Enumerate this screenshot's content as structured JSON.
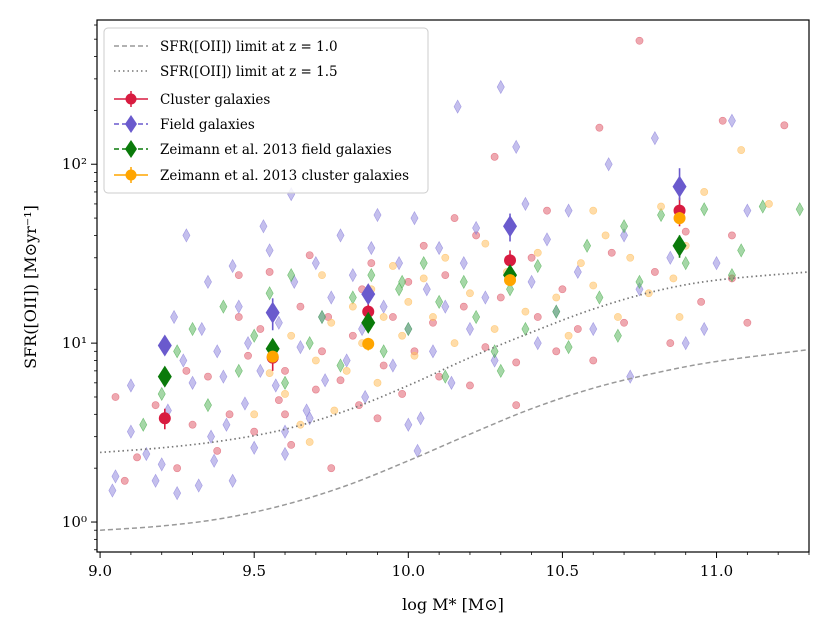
{
  "chart_data": {
    "type": "scatter",
    "title": "",
    "xlabel": "log M* [M⊙]",
    "ylabel": "SFR([OII]) [M⊙yr⁻¹]",
    "xlim": [
      8.99,
      11.3
    ],
    "ylim": [
      0.68,
      640
    ],
    "yscale": "log",
    "grid": false,
    "legend_position": "top-left",
    "x_ticks": [
      9.0,
      9.5,
      10.0,
      10.5,
      11.0
    ],
    "x_tick_labels": [
      "9.0",
      "9.5",
      "10.0",
      "10.5",
      "11.0"
    ],
    "y_ticks": [
      1,
      10,
      100
    ],
    "y_tick_labels": [
      "10⁰",
      "10¹",
      "10²"
    ],
    "legend": [
      {
        "label": "SFR([OII]) limit at z = 1.0",
        "color": "#999999",
        "style": "dashed-line"
      },
      {
        "label": "SFR([OII]) limit at z = 1.5",
        "color": "#777777",
        "style": "dotted-line"
      },
      {
        "label": "Cluster galaxies",
        "color": "#d81b40",
        "style": "circle-errorbar"
      },
      {
        "label": "Field galaxies",
        "color": "#6a5acd",
        "style": "diamond-dashed"
      },
      {
        "label": "Zeimann et al. 2013 field galaxies",
        "color": "#0a7a0a",
        "style": "diamond-dashed"
      },
      {
        "label": "Zeimann et al. 2013 cluster galaxies",
        "color": "#ffa500",
        "style": "circle-errorbar"
      }
    ],
    "limit_curves": [
      {
        "name": "SFR([OII]) limit at z=1.0",
        "x": [
          9.0,
          9.2,
          9.4,
          9.6,
          9.8,
          10.0,
          10.2,
          10.4,
          10.6,
          10.8,
          11.0,
          11.3
        ],
        "y": [
          0.9,
          0.95,
          1.05,
          1.25,
          1.6,
          2.2,
          3.1,
          4.3,
          5.6,
          6.8,
          7.9,
          9.2
        ]
      },
      {
        "name": "SFR([OII]) limit at z=1.5",
        "x": [
          9.0,
          9.2,
          9.4,
          9.6,
          9.8,
          10.0,
          10.2,
          10.4,
          10.6,
          10.8,
          11.0,
          11.3
        ],
        "y": [
          2.45,
          2.6,
          2.85,
          3.3,
          4.2,
          5.8,
          8.3,
          11.5,
          15.5,
          19.5,
          22.5,
          25
        ]
      }
    ],
    "binned_series": [
      {
        "name": "Cluster galaxies",
        "x": [
          9.21,
          9.56,
          9.87,
          10.33,
          10.88
        ],
        "y": [
          3.8,
          8.3,
          15,
          29,
          55
        ],
        "err_low": [
          0.5,
          1.3,
          2.5,
          8,
          10
        ],
        "err_high": [
          0.5,
          1.3,
          2.5,
          4,
          10
        ]
      },
      {
        "name": "Field galaxies",
        "x": [
          9.21,
          9.56,
          9.87,
          10.33,
          10.88
        ],
        "y": [
          9.7,
          14.8,
          18.8,
          45,
          75
        ],
        "err_low": [
          0.6,
          3,
          1.5,
          8,
          12
        ],
        "err_high": [
          0.6,
          3,
          1.5,
          8,
          20
        ]
      },
      {
        "name": "Zeimann et al. 2013 field galaxies",
        "x": [
          9.21,
          9.56,
          9.87,
          10.33,
          10.88
        ],
        "y": [
          6.5,
          9.3,
          13,
          24,
          35
        ],
        "err_low": [
          0.4,
          0.8,
          1.2,
          2,
          5
        ],
        "err_high": [
          0.4,
          0.8,
          1.2,
          2,
          5
        ]
      },
      {
        "name": "Zeimann et al. 2013 cluster galaxies",
        "x": [
          9.56,
          9.87,
          10.33,
          10.88
        ],
        "y": [
          8.4,
          9.9,
          22.5,
          50
        ],
        "err_low": [
          0.6,
          0.8,
          1.5,
          4
        ],
        "err_high": [
          0.6,
          0.8,
          1.5,
          4
        ]
      }
    ],
    "scatter_series": [
      {
        "name": "Cluster galaxies (individual)",
        "color": "#e06070",
        "marker": "circle",
        "points": [
          [
            9.05,
            5.0
          ],
          [
            9.08,
            1.7
          ],
          [
            9.12,
            2.3
          ],
          [
            9.18,
            4.5
          ],
          [
            9.25,
            2.0
          ],
          [
            9.28,
            7.0
          ],
          [
            9.3,
            3.5
          ],
          [
            9.35,
            6.5
          ],
          [
            9.38,
            2.5
          ],
          [
            9.42,
            4.0
          ],
          [
            9.45,
            14
          ],
          [
            9.45,
            24
          ],
          [
            9.48,
            8.5
          ],
          [
            9.5,
            3.2
          ],
          [
            9.52,
            12
          ],
          [
            9.55,
            25
          ],
          [
            9.58,
            4.8
          ],
          [
            9.6,
            7.0
          ],
          [
            9.62,
            2.7
          ],
          [
            9.65,
            16
          ],
          [
            9.68,
            31
          ],
          [
            9.7,
            5.5
          ],
          [
            9.72,
            9.0
          ],
          [
            9.75,
            2.0
          ],
          [
            9.78,
            6.2
          ],
          [
            9.82,
            11
          ],
          [
            9.84,
            4.5
          ],
          [
            9.85,
            20
          ],
          [
            9.88,
            28
          ],
          [
            9.9,
            3.8
          ],
          [
            9.92,
            7.5
          ],
          [
            9.95,
            14
          ],
          [
            9.98,
            5.2
          ],
          [
            10.0,
            22
          ],
          [
            10.02,
            9.0
          ],
          [
            10.05,
            35
          ],
          [
            10.08,
            13
          ],
          [
            10.1,
            6.5
          ],
          [
            10.12,
            24
          ],
          [
            10.15,
            50
          ],
          [
            10.18,
            16
          ],
          [
            10.2,
            5.8
          ],
          [
            10.22,
            40
          ],
          [
            10.25,
            9.5
          ],
          [
            10.28,
            110
          ],
          [
            10.3,
            18
          ],
          [
            10.35,
            7.8
          ],
          [
            10.4,
            30
          ],
          [
            10.42,
            14
          ],
          [
            10.45,
            55
          ],
          [
            10.48,
            9.0
          ],
          [
            10.5,
            20
          ],
          [
            10.55,
            12
          ],
          [
            10.6,
            8.0
          ],
          [
            10.62,
            160
          ],
          [
            10.66,
            32
          ],
          [
            10.7,
            13
          ],
          [
            10.75,
            490
          ],
          [
            10.8,
            25
          ],
          [
            10.85,
            10
          ],
          [
            10.9,
            42
          ],
          [
            10.95,
            17
          ],
          [
            11.02,
            175
          ],
          [
            11.05,
            23
          ],
          [
            11.1,
            13
          ],
          [
            11.22,
            165
          ],
          [
            11.05,
            40
          ],
          [
            9.6,
            4.0
          ],
          [
            9.74,
            14
          ],
          [
            10.35,
            4.5
          ]
        ]
      },
      {
        "name": "Field galaxies (individual)",
        "color": "#8a80dc",
        "marker": "diamond",
        "points": [
          [
            9.04,
            1.5
          ],
          [
            9.1,
            3.2
          ],
          [
            9.1,
            5.8
          ],
          [
            9.15,
            2.4
          ],
          [
            9.18,
            1.7
          ],
          [
            9.2,
            2.1
          ],
          [
            9.22,
            4.2
          ],
          [
            9.24,
            14
          ],
          [
            9.25,
            1.45
          ],
          [
            9.27,
            8
          ],
          [
            9.28,
            40
          ],
          [
            9.3,
            6
          ],
          [
            9.32,
            1.6
          ],
          [
            9.33,
            12
          ],
          [
            9.35,
            22
          ],
          [
            9.37,
            2.2
          ],
          [
            9.38,
            9
          ],
          [
            9.4,
            6.5
          ],
          [
            9.41,
            3.5
          ],
          [
            9.43,
            27
          ],
          [
            9.45,
            16
          ],
          [
            9.47,
            4.6
          ],
          [
            9.48,
            10
          ],
          [
            9.5,
            2.6
          ],
          [
            9.52,
            7
          ],
          [
            9.53,
            45
          ],
          [
            9.55,
            33
          ],
          [
            9.57,
            5.8
          ],
          [
            9.58,
            13
          ],
          [
            9.6,
            3.2
          ],
          [
            9.62,
            68
          ],
          [
            9.63,
            22
          ],
          [
            9.65,
            9.5
          ],
          [
            9.67,
            4.2
          ],
          [
            9.7,
            28
          ],
          [
            9.72,
            14
          ],
          [
            9.73,
            6.2
          ],
          [
            9.75,
            18
          ],
          [
            9.78,
            40
          ],
          [
            9.8,
            8
          ],
          [
            9.82,
            24
          ],
          [
            9.85,
            12
          ],
          [
            9.86,
            5
          ],
          [
            9.88,
            34
          ],
          [
            9.9,
            52
          ],
          [
            9.92,
            16
          ],
          [
            9.95,
            7.5
          ],
          [
            9.97,
            28
          ],
          [
            10.0,
            12
          ],
          [
            10.02,
            50
          ],
          [
            10.04,
            3.8
          ],
          [
            10.06,
            20
          ],
          [
            10.08,
            9
          ],
          [
            10.1,
            34
          ],
          [
            10.12,
            16
          ],
          [
            10.14,
            6
          ],
          [
            10.16,
            210
          ],
          [
            10.18,
            28
          ],
          [
            10.2,
            12
          ],
          [
            10.22,
            44
          ],
          [
            10.25,
            18
          ],
          [
            10.28,
            8
          ],
          [
            10.3,
            270
          ],
          [
            10.35,
            125
          ],
          [
            10.38,
            60
          ],
          [
            10.4,
            22
          ],
          [
            10.42,
            10
          ],
          [
            10.45,
            38
          ],
          [
            10.48,
            15
          ],
          [
            10.52,
            55
          ],
          [
            10.55,
            25
          ],
          [
            10.6,
            12
          ],
          [
            10.65,
            100
          ],
          [
            10.7,
            40
          ],
          [
            10.72,
            6.5
          ],
          [
            10.75,
            20
          ],
          [
            10.8,
            140
          ],
          [
            10.85,
            30
          ],
          [
            10.9,
            10
          ],
          [
            10.96,
            12
          ],
          [
            11.0,
            28
          ],
          [
            11.05,
            175
          ],
          [
            11.1,
            55
          ],
          [
            9.05,
            1.8
          ],
          [
            9.36,
            3.0
          ],
          [
            9.68,
            3.8
          ],
          [
            10.0,
            3.5
          ],
          [
            10.03,
            2.5
          ],
          [
            9.6,
            2.4
          ],
          [
            9.43,
            1.7
          ]
        ]
      },
      {
        "name": "Zeimann et al. 2013 field galaxies (individual)",
        "color": "#4caf50",
        "marker": "diamond",
        "points": [
          [
            9.14,
            3.5
          ],
          [
            9.2,
            5.2
          ],
          [
            9.25,
            9
          ],
          [
            9.3,
            12
          ],
          [
            9.35,
            4.5
          ],
          [
            9.4,
            16
          ],
          [
            9.45,
            7
          ],
          [
            9.5,
            11
          ],
          [
            9.55,
            19
          ],
          [
            9.6,
            6
          ],
          [
            9.62,
            24
          ],
          [
            9.68,
            10
          ],
          [
            9.72,
            14
          ],
          [
            9.78,
            7.5
          ],
          [
            9.82,
            18
          ],
          [
            9.88,
            24
          ],
          [
            9.92,
            9
          ],
          [
            9.97,
            20
          ],
          [
            10.0,
            12
          ],
          [
            10.05,
            28
          ],
          [
            10.1,
            17
          ],
          [
            10.12,
            6.5
          ],
          [
            10.18,
            22
          ],
          [
            10.22,
            14
          ],
          [
            10.28,
            9
          ],
          [
            10.33,
            20
          ],
          [
            10.38,
            12
          ],
          [
            10.42,
            27
          ],
          [
            10.48,
            15
          ],
          [
            10.52,
            9.5
          ],
          [
            10.58,
            35
          ],
          [
            10.62,
            18
          ],
          [
            10.68,
            11
          ],
          [
            10.7,
            45
          ],
          [
            10.75,
            22
          ],
          [
            10.82,
            52
          ],
          [
            10.9,
            28
          ],
          [
            10.96,
            56
          ],
          [
            11.05,
            24
          ],
          [
            11.08,
            33
          ],
          [
            11.15,
            58
          ],
          [
            11.27,
            56
          ],
          [
            10.3,
            7.0
          ],
          [
            9.98,
            22
          ]
        ]
      },
      {
        "name": "Zeimann et al. 2013 cluster galaxies (individual)",
        "color": "#ffc060",
        "marker": "circle",
        "points": [
          [
            9.5,
            4.0
          ],
          [
            9.55,
            6.8
          ],
          [
            9.6,
            5.2
          ],
          [
            9.62,
            11
          ],
          [
            9.65,
            3.5
          ],
          [
            9.7,
            8
          ],
          [
            9.72,
            24
          ],
          [
            9.75,
            13
          ],
          [
            9.8,
            7
          ],
          [
            9.82,
            16
          ],
          [
            9.85,
            10
          ],
          [
            9.88,
            20
          ],
          [
            9.9,
            6
          ],
          [
            9.92,
            14
          ],
          [
            9.95,
            27
          ],
          [
            9.98,
            11
          ],
          [
            10.0,
            17
          ],
          [
            10.02,
            8.5
          ],
          [
            10.05,
            23
          ],
          [
            10.08,
            14
          ],
          [
            10.12,
            30
          ],
          [
            10.15,
            10
          ],
          [
            10.2,
            19
          ],
          [
            10.25,
            36
          ],
          [
            10.28,
            12
          ],
          [
            10.32,
            25
          ],
          [
            10.38,
            15
          ],
          [
            10.42,
            32
          ],
          [
            10.48,
            18
          ],
          [
            10.52,
            11
          ],
          [
            10.56,
            28
          ],
          [
            10.6,
            21
          ],
          [
            10.64,
            40
          ],
          [
            10.68,
            14
          ],
          [
            10.72,
            30
          ],
          [
            10.78,
            19
          ],
          [
            10.82,
            58
          ],
          [
            10.86,
            23
          ],
          [
            10.9,
            35
          ],
          [
            10.96,
            70
          ],
          [
            11.08,
            120
          ],
          [
            11.17,
            60
          ],
          [
            9.68,
            2.8
          ],
          [
            9.76,
            4.2
          ],
          [
            10.88,
            14
          ],
          [
            10.6,
            55
          ]
        ]
      }
    ]
  }
}
